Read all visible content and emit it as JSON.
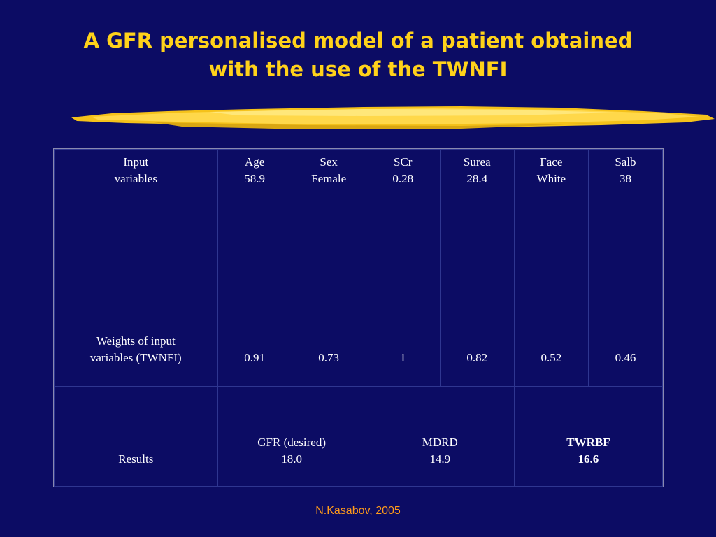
{
  "slide": {
    "title_line1": "A GFR personalised model of a patient obtained",
    "title_line2": "with the use of the TWNFI",
    "footer": "N.Kasabov, 2005",
    "colors": {
      "background": "#0c0c64",
      "title": "#ffd21a",
      "footer": "#ff9a1a",
      "table_text": "#ffffff"
    }
  },
  "table": {
    "inputs_row": {
      "header_line1": "Input",
      "header_line2": "variables",
      "cells": [
        {
          "name": "Age",
          "value": "58.9"
        },
        {
          "name": "Sex",
          "value": "Female"
        },
        {
          "name": "SCr",
          "value": "0.28"
        },
        {
          "name": "Surea",
          "value": "28.4"
        },
        {
          "name": "Face",
          "value": "White"
        },
        {
          "name": "Salb",
          "value": "38"
        }
      ]
    },
    "weights_row": {
      "header_line1": "Weights of input",
      "header_line2": "variables (TWNFI)",
      "values": [
        "0.91",
        "0.73",
        "1",
        "0.82",
        "0.52",
        "0.46"
      ]
    },
    "results_row": {
      "header": "Results",
      "results": [
        {
          "name": "GFR (desired)",
          "value": "18.0"
        },
        {
          "name": "MDRD",
          "value": "14.9"
        },
        {
          "name": "TWRBF",
          "value": "16.6"
        }
      ]
    }
  }
}
